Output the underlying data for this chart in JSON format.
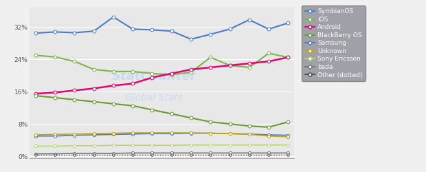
{
  "n_points": 14,
  "series": {
    "SymbianOS": {
      "color": "#4a7cc7",
      "lw": 1.5,
      "ls": "-",
      "ms": 3.5,
      "values": [
        30.5,
        30.8,
        30.6,
        31.0,
        34.5,
        31.5,
        31.3,
        31.0,
        29.0,
        30.2,
        31.5,
        33.8,
        31.5,
        33.0
      ]
    },
    "iOS": {
      "color": "#7ab648",
      "lw": 1.5,
      "ls": "-",
      "ms": 3.5,
      "values": [
        25.0,
        24.6,
        23.5,
        21.5,
        21.0,
        21.0,
        20.5,
        20.2,
        20.8,
        24.5,
        22.5,
        22.0,
        25.5,
        24.5
      ]
    },
    "Android": {
      "color": "#e8006e",
      "lw": 1.8,
      "ls": "-",
      "ms": 3.5,
      "values": [
        15.5,
        15.8,
        16.3,
        16.8,
        17.5,
        18.0,
        19.5,
        20.5,
        21.5,
        22.0,
        22.5,
        23.0,
        23.5,
        24.5
      ]
    },
    "BlackBerry OS": {
      "color": "#6a9a30",
      "lw": 1.5,
      "ls": "-",
      "ms": 3.5,
      "values": [
        15.0,
        14.5,
        14.0,
        13.5,
        13.0,
        12.5,
        11.5,
        10.5,
        9.5,
        8.5,
        8.0,
        7.5,
        7.2,
        8.5
      ]
    },
    "Samsung": {
      "color": "#4a7cc7",
      "lw": 1.2,
      "ls": "-",
      "ms": 3.0,
      "values": [
        5.0,
        5.0,
        5.2,
        5.3,
        5.4,
        5.5,
        5.6,
        5.6,
        5.7,
        5.7,
        5.6,
        5.5,
        5.3,
        5.2
      ]
    },
    "Unknown": {
      "color": "#c9a800",
      "lw": 1.2,
      "ls": "-",
      "ms": 3.0,
      "values": [
        5.3,
        5.4,
        5.5,
        5.6,
        5.7,
        5.8,
        5.8,
        5.8,
        5.8,
        5.7,
        5.6,
        5.4,
        5.0,
        4.8
      ]
    },
    "Sony Ericsson": {
      "color": "#b5d96e",
      "lw": 1.2,
      "ls": "-",
      "ms": 3.0,
      "values": [
        2.5,
        2.5,
        2.6,
        2.6,
        2.7,
        2.7,
        2.7,
        2.7,
        2.8,
        2.8,
        2.8,
        2.8,
        2.8,
        2.8
      ]
    },
    "bada": {
      "color": "#777777",
      "lw": 1.2,
      "ls": "-",
      "ms": 3.0,
      "values": [
        0.6,
        0.6,
        0.7,
        0.7,
        0.7,
        0.8,
        0.8,
        0.8,
        0.8,
        0.8,
        0.8,
        0.8,
        0.8,
        0.8
      ]
    },
    "Other": {
      "color": "#444444",
      "lw": 1.0,
      "ls": "dotted",
      "ms": 2.5,
      "values": [
        0.3,
        0.3,
        0.3,
        0.3,
        0.3,
        0.3,
        0.3,
        0.3,
        0.3,
        0.3,
        0.3,
        0.3,
        0.3,
        0.3
      ]
    }
  },
  "yticks": [
    0,
    8,
    16,
    24,
    32
  ],
  "ytick_labels": [
    "0%",
    "8%",
    "16%",
    "24%",
    "32%"
  ],
  "ylim": [
    -0.5,
    37
  ],
  "fig_bg": "#f0f0f0",
  "plot_bg": "#e8e8e8",
  "legend_bg": "#a0a0a8",
  "legend_entries": [
    "SymbianOS",
    "iOS",
    "Android",
    "BlackBerry OS",
    "Samsung",
    "Unknown",
    "Sony Ericsson",
    "bada",
    "Other (dotted)"
  ],
  "legend_colors": [
    "#4a7cc7",
    "#7ab648",
    "#e8006e",
    "#6a9a30",
    "#4a7cc7",
    "#c9a800",
    "#b5d96e",
    "#777777",
    "#444444"
  ]
}
